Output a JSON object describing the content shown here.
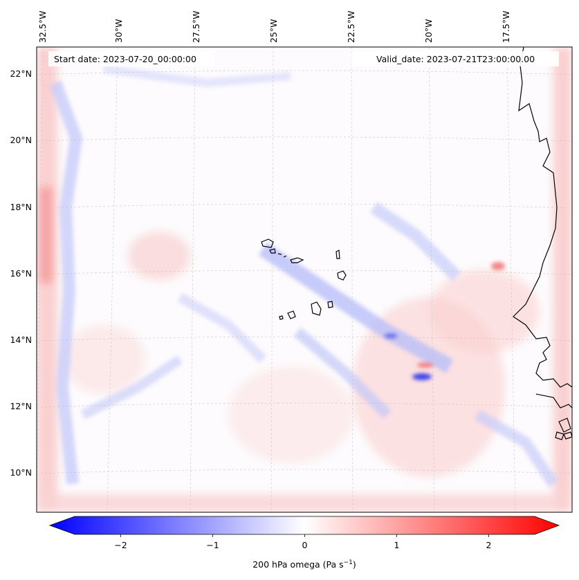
{
  "map": {
    "start_date_text": "Start date: 2023-07-20_00:00:00",
    "valid_date_text": "Valid_date: 2023-07-21T23:00:00.00",
    "lon_labels": [
      "32.5°W",
      "30°W",
      "27.5°W",
      "25°W",
      "22.5°W",
      "20°W",
      "17.5°W"
    ],
    "lat_labels": [
      "22°N",
      "20°N",
      "18°N",
      "16°N",
      "14°N",
      "12°N",
      "10°N"
    ],
    "field": "200 hPa omega",
    "features": [
      "Cabo Verde islands",
      "West African coastline"
    ]
  },
  "colorbar": {
    "label_main": "200 hPa omega (Pa s",
    "label_sup": "−1",
    "label_end": ")",
    "tick_labels": [
      "−2",
      "−1",
      "0",
      "1",
      "2"
    ],
    "tick_values": [
      -2,
      -1,
      0,
      1,
      2
    ],
    "range": [
      -2.7,
      2.7
    ],
    "colormap": "bwr",
    "color_low": "#0000ff",
    "color_mid": "#ffffff",
    "color_high": "#ff0000",
    "extend": "both"
  }
}
